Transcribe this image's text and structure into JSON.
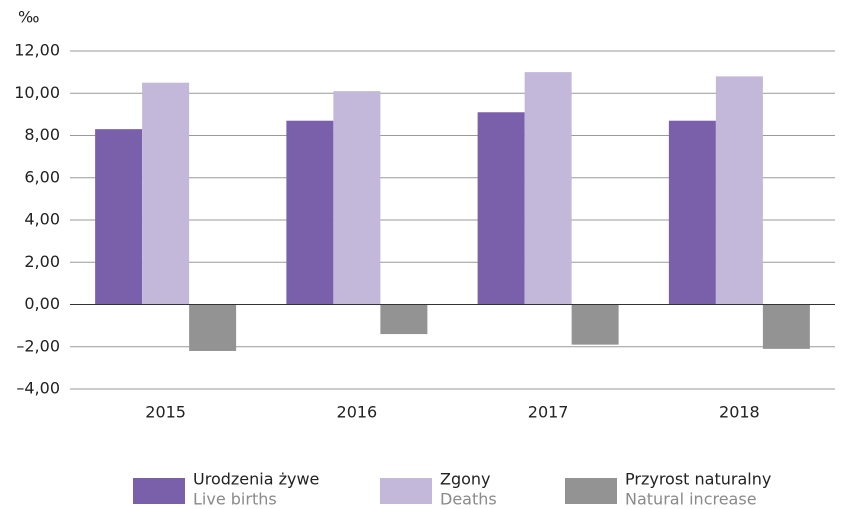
{
  "chart_data": {
    "type": "bar",
    "unit": "‰",
    "categories": [
      "2015",
      "2016",
      "2017",
      "2018"
    ],
    "series": [
      {
        "name": "Urodzenia żywe",
        "name_en": "Live births",
        "color": "#7a5faa",
        "values": [
          8.3,
          8.7,
          9.1,
          8.7
        ]
      },
      {
        "name": "Zgony",
        "name_en": "Deaths",
        "color": "#c3b8da",
        "values": [
          10.5,
          10.1,
          11.0,
          10.8
        ]
      },
      {
        "name": "Przyrost naturalny",
        "name_en": "Natural increase",
        "color": "#939393",
        "values": [
          -2.2,
          -1.4,
          -1.9,
          -2.1
        ]
      }
    ],
    "ylim": [
      -4,
      12
    ],
    "yticks": [
      {
        "value": -4,
        "label": "–4,00"
      },
      {
        "value": -2,
        "label": "–2,00"
      },
      {
        "value": 0,
        "label": "0,00"
      },
      {
        "value": 2,
        "label": "2,00"
      },
      {
        "value": 4,
        "label": "4,00"
      },
      {
        "value": 6,
        "label": "6,00"
      },
      {
        "value": 8,
        "label": "8,00"
      },
      {
        "value": 10,
        "label": "10,00"
      },
      {
        "value": 12,
        "label": "12,00"
      }
    ],
    "grid": true,
    "legend": "bottom"
  }
}
